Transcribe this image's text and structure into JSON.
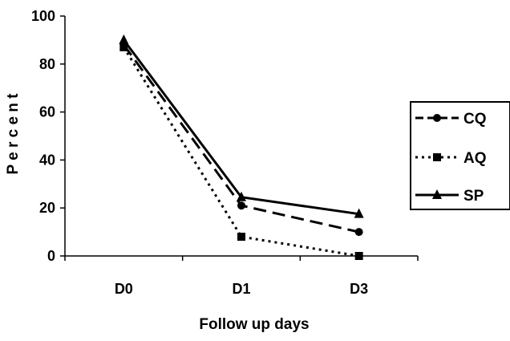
{
  "chart_data": {
    "type": "line",
    "title": "",
    "xlabel": "Follow up days",
    "ylabel": "P e r c e n t",
    "categories": [
      "D0",
      "D1",
      "D3"
    ],
    "ylim": [
      0,
      100
    ],
    "yticks": [
      "0",
      "20",
      "40",
      "60",
      "80",
      "100"
    ],
    "grid": false,
    "legend_position": "right",
    "series": [
      {
        "name": "CQ",
        "values": [
          88,
          21,
          10
        ],
        "marker": "circle",
        "dash": "long-dash",
        "color": "#000000"
      },
      {
        "name": "AQ",
        "values": [
          87,
          8,
          0
        ],
        "marker": "square",
        "dash": "dotted",
        "color": "#000000"
      },
      {
        "name": "SP",
        "values": [
          90,
          24.5,
          17.5
        ],
        "marker": "triangle",
        "dash": "solid",
        "color": "#000000"
      }
    ]
  }
}
